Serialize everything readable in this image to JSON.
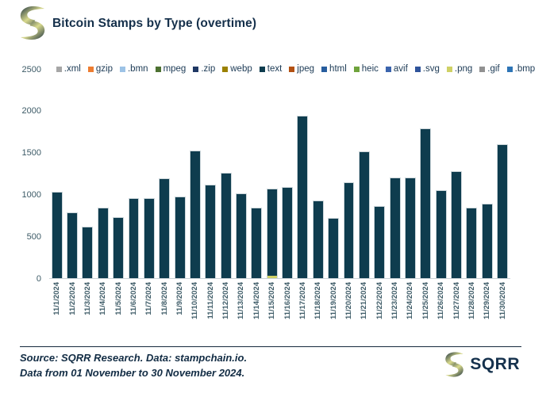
{
  "header": {
    "title": "Bitcoin Stamps by Type (overtime)"
  },
  "legend": {
    "items": [
      {
        "label": ".xml",
        "color": "#a6a6a6"
      },
      {
        "label": "gzip",
        "color": "#ed7d31"
      },
      {
        "label": ".bmn",
        "color": "#9dc3e6"
      },
      {
        "label": "mpeg",
        "color": "#4d7131"
      },
      {
        "label": ".zip",
        "color": "#1f3864"
      },
      {
        "label": "webp",
        "color": "#9b8100"
      },
      {
        "label": "text",
        "color": "#0e3c4e"
      },
      {
        "label": "jpeg",
        "color": "#b35112"
      },
      {
        "label": "html",
        "color": "#275d9e"
      },
      {
        "label": "heic",
        "color": "#6fa33c"
      },
      {
        "label": "avif",
        "color": "#3b64ad"
      },
      {
        "label": ".svg",
        "color": "#2f549b"
      },
      {
        "label": ".png",
        "color": "#cfd165"
      },
      {
        "label": ".gif",
        "color": "#919191"
      },
      {
        "label": ".bmp",
        "color": "#2e75b6"
      }
    ]
  },
  "chart_data": {
    "type": "bar",
    "stacked": true,
    "title": "Bitcoin Stamps by Type (overtime)",
    "xlabel": "",
    "ylabel": "",
    "ylim": [
      0,
      2500
    ],
    "yticks": [
      0,
      500,
      1000,
      1500,
      2000,
      2500
    ],
    "grid": false,
    "legend_position": "top",
    "categories": [
      "11/1/2024",
      "11/2/2024",
      "11/3/2024",
      "11/4/2024",
      "11/5/2024",
      "11/6/2024",
      "11/7/2024",
      "11/8/2024",
      "11/9/2024",
      "11/10/2024",
      "11/11/2024",
      "11/12/2024",
      "11/13/2024",
      "11/14/2024",
      "11/15/2024",
      "11/16/2024",
      "11/17/2024",
      "11/18/2024",
      "11/19/2024",
      "11/20/2024",
      "11/21/2024",
      "11/22/2024",
      "11/23/2024",
      "11/24/2024",
      "11/25/2024",
      "11/26/2024",
      "11/27/2024",
      "11/28/2024",
      "11/29/2024",
      "11/30/2024"
    ],
    "series": [
      {
        "name": "text",
        "color": "#0e3c4e",
        "values": [
          1020,
          780,
          610,
          830,
          720,
          950,
          945,
          1180,
          970,
          1520,
          1110,
          1250,
          1000,
          830,
          1035,
          1080,
          1930,
          920,
          715,
          1140,
          1510,
          850,
          1190,
          1190,
          1780,
          1040,
          1270,
          830,
          880,
          1590
        ]
      },
      {
        "name": ".png",
        "color": "#cfd165",
        "values": [
          0,
          0,
          0,
          0,
          0,
          0,
          0,
          0,
          0,
          0,
          0,
          0,
          0,
          0,
          25,
          0,
          0,
          0,
          0,
          0,
          0,
          0,
          0,
          0,
          0,
          0,
          0,
          0,
          0,
          0
        ]
      }
    ]
  },
  "footer": {
    "source": "Source: SQRR Research. Data: stampchain.io.",
    "range": "Data from 01 November to 30 November 2024.",
    "brand": "SQRR"
  }
}
